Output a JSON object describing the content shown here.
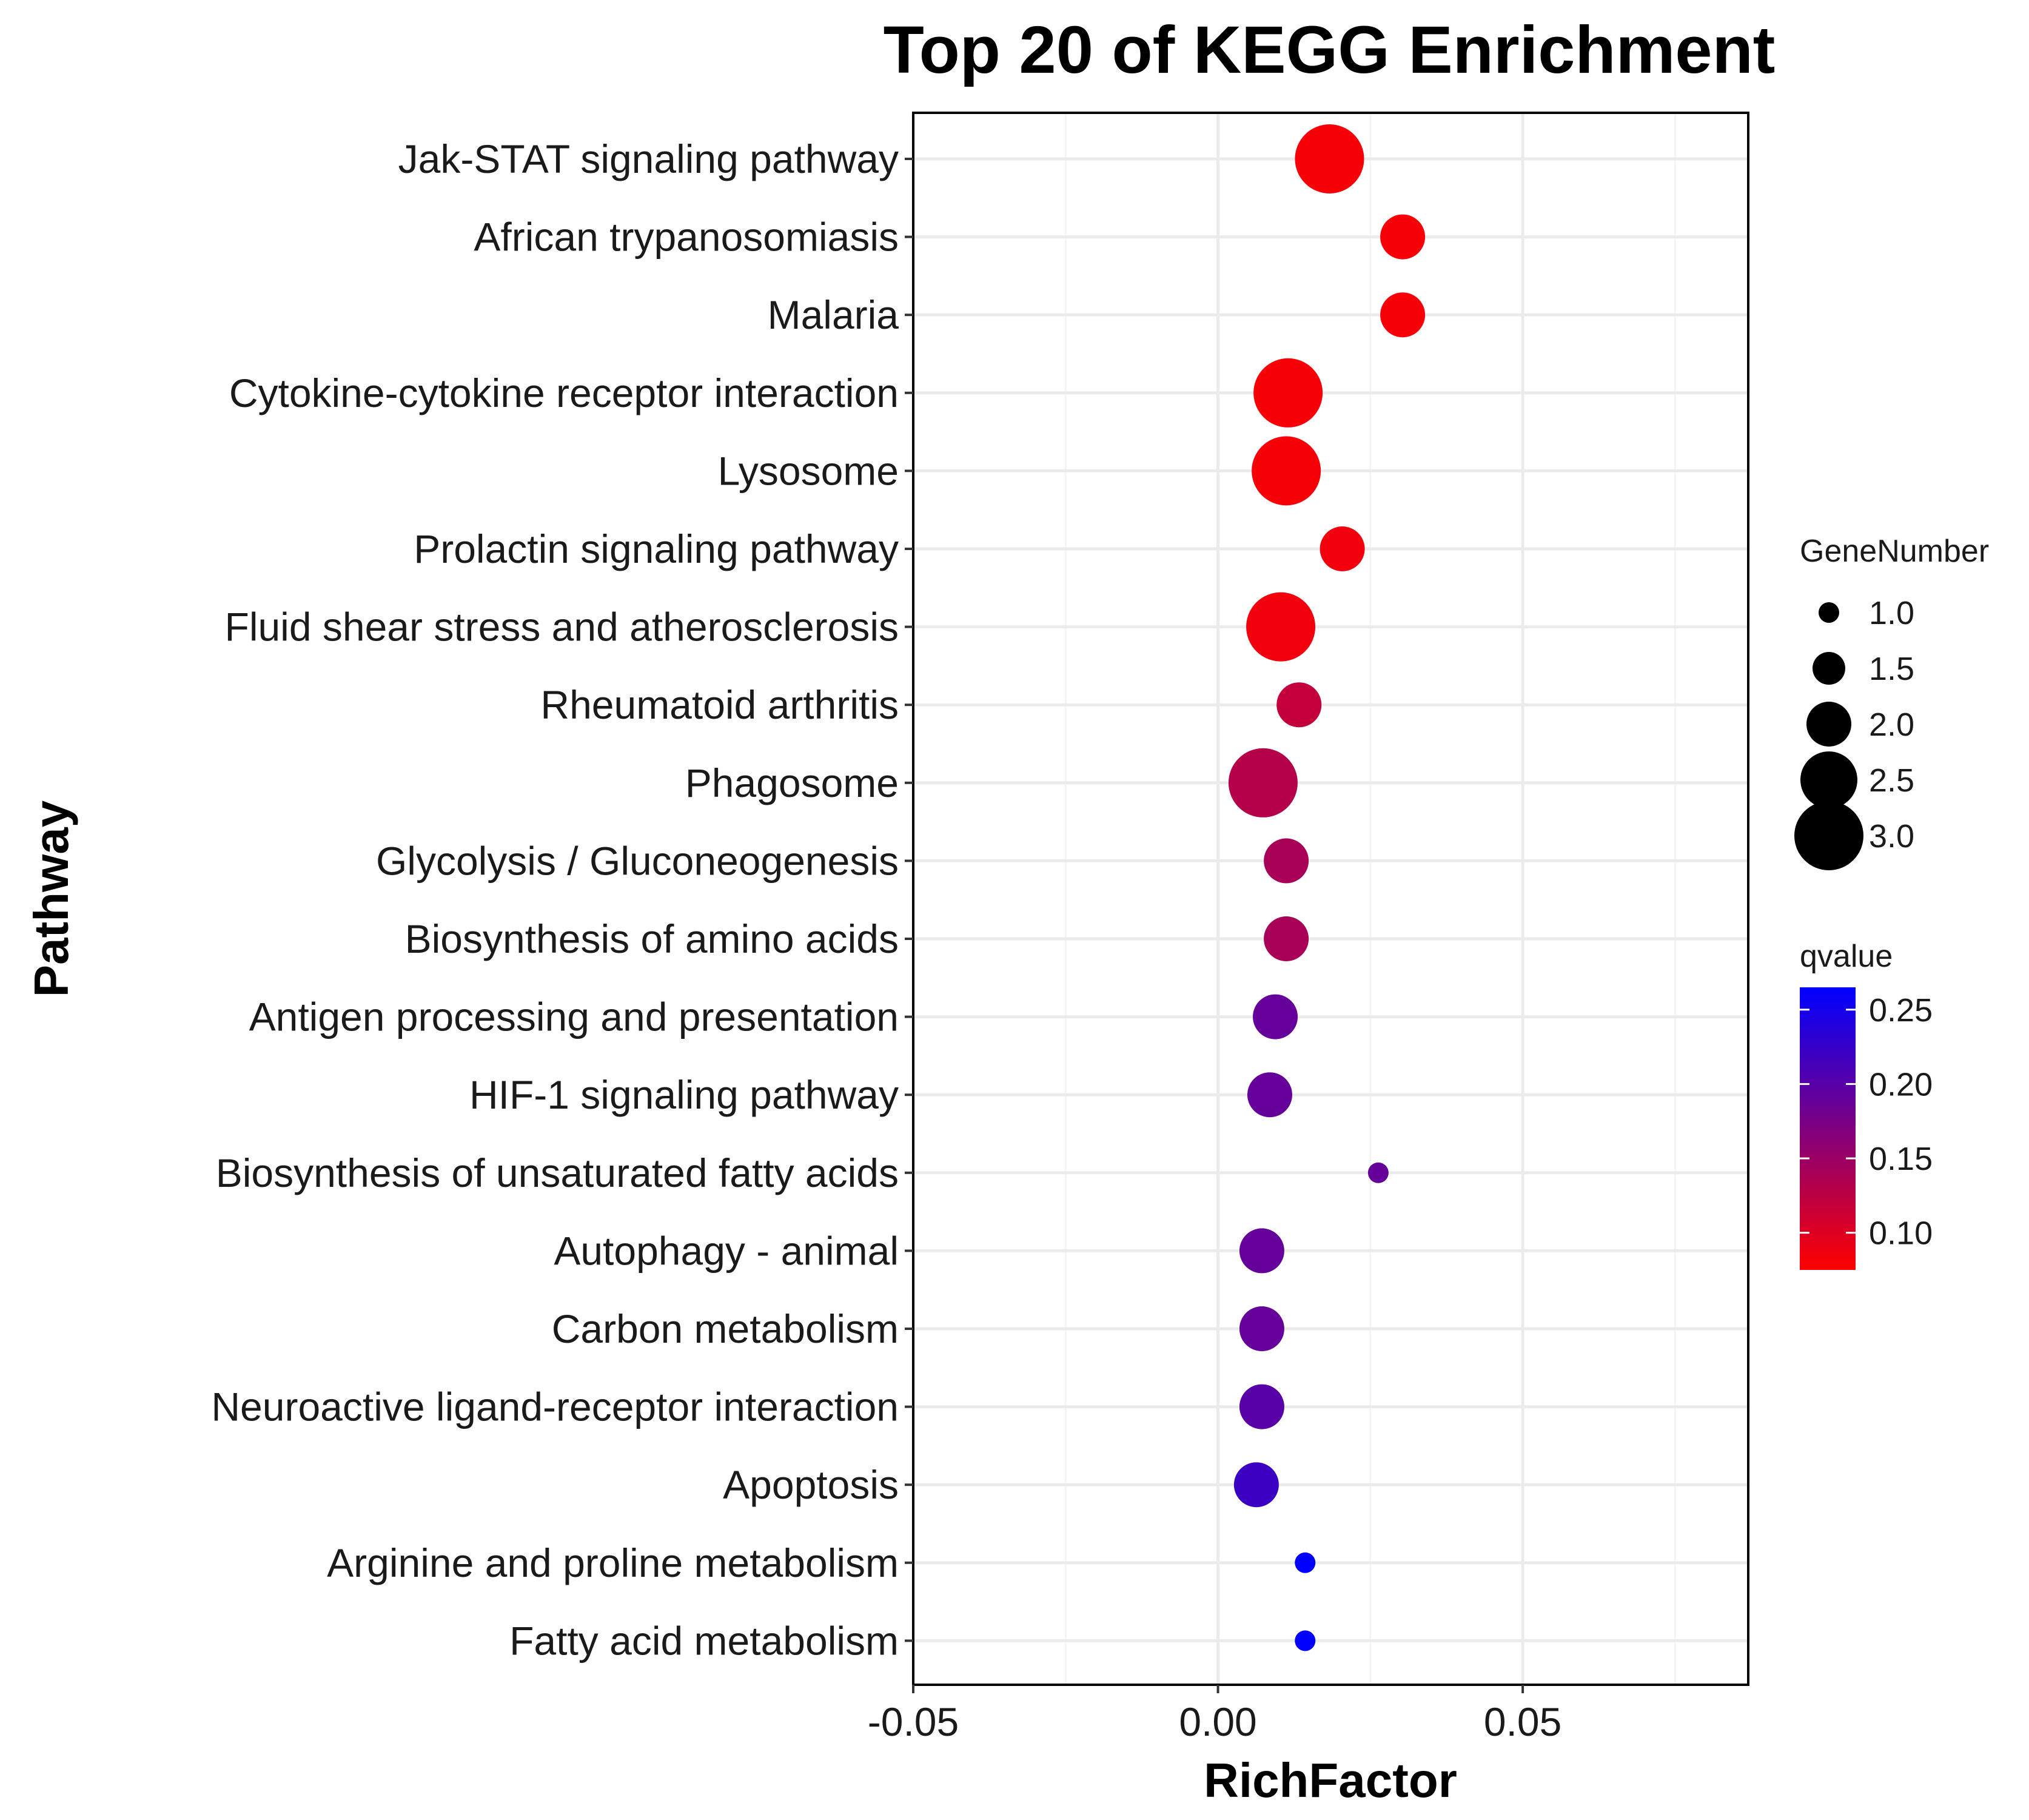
{
  "chart_data": {
    "type": "scatter",
    "title": "Top 20 of KEGG Enrichment",
    "xlabel": "RichFactor",
    "ylabel": "Pathway",
    "xlim": [
      -0.05,
      0.087
    ],
    "x_ticks": [
      -0.05,
      0.0,
      0.05
    ],
    "x_tick_labels": [
      "-0.05",
      "0.00",
      "0.05"
    ],
    "grid": true,
    "points": [
      {
        "pathway": "Jak-STAT signaling pathway",
        "rich_factor": 0.0183,
        "gene_number": 3,
        "qvalue": 0.08
      },
      {
        "pathway": "African trypanosomiasis",
        "rich_factor": 0.0303,
        "gene_number": 2,
        "qvalue": 0.08
      },
      {
        "pathway": "Malaria",
        "rich_factor": 0.0303,
        "gene_number": 2,
        "qvalue": 0.08
      },
      {
        "pathway": "Cytokine-cytokine receptor interaction",
        "rich_factor": 0.0115,
        "gene_number": 3,
        "qvalue": 0.08
      },
      {
        "pathway": "Lysosome",
        "rich_factor": 0.0112,
        "gene_number": 3,
        "qvalue": 0.08
      },
      {
        "pathway": "Prolactin signaling pathway",
        "rich_factor": 0.0204,
        "gene_number": 2,
        "qvalue": 0.085
      },
      {
        "pathway": "Fluid shear stress and atherosclerosis",
        "rich_factor": 0.0103,
        "gene_number": 3,
        "qvalue": 0.085
      },
      {
        "pathway": "Rheumatoid arthritis",
        "rich_factor": 0.0133,
        "gene_number": 2,
        "qvalue": 0.12
      },
      {
        "pathway": "Phagosome",
        "rich_factor": 0.0074,
        "gene_number": 3,
        "qvalue": 0.13
      },
      {
        "pathway": "Glycolysis / Gluconeogenesis",
        "rich_factor": 0.0112,
        "gene_number": 2,
        "qvalue": 0.14
      },
      {
        "pathway": "Biosynthesis of amino acids",
        "rich_factor": 0.0112,
        "gene_number": 2,
        "qvalue": 0.14
      },
      {
        "pathway": "Antigen processing and presentation",
        "rich_factor": 0.0094,
        "gene_number": 2,
        "qvalue": 0.19
      },
      {
        "pathway": "HIF-1 signaling pathway",
        "rich_factor": 0.0085,
        "gene_number": 2,
        "qvalue": 0.19
      },
      {
        "pathway": "Biosynthesis of unsaturated fatty acids",
        "rich_factor": 0.0263,
        "gene_number": 1,
        "qvalue": 0.19
      },
      {
        "pathway": "Autophagy - animal",
        "rich_factor": 0.0072,
        "gene_number": 2,
        "qvalue": 0.19
      },
      {
        "pathway": "Carbon metabolism",
        "rich_factor": 0.0072,
        "gene_number": 2,
        "qvalue": 0.19
      },
      {
        "pathway": "Neuroactive ligand-receptor interaction",
        "rich_factor": 0.0072,
        "gene_number": 2,
        "qvalue": 0.2
      },
      {
        "pathway": "Apoptosis",
        "rich_factor": 0.0063,
        "gene_number": 2,
        "qvalue": 0.22
      },
      {
        "pathway": "Arginine and proline metabolism",
        "rich_factor": 0.0143,
        "gene_number": 1,
        "qvalue": 0.265
      },
      {
        "pathway": "Fatty acid metabolism",
        "rich_factor": 0.0143,
        "gene_number": 1,
        "qvalue": 0.265
      }
    ],
    "size_legend": {
      "title": "GeneNumber",
      "values": [
        1.0,
        1.5,
        2.0,
        2.5,
        3.0
      ],
      "labels": [
        "1.0",
        "1.5",
        "2.0",
        "2.5",
        "3.0"
      ]
    },
    "color_legend": {
      "title": "qvalue",
      "min": 0.075,
      "max": 0.265,
      "low_color": "#ff0000",
      "high_color": "#0000ff",
      "ticks": [
        0.25,
        0.2,
        0.15,
        0.1
      ],
      "tick_labels": [
        "0.25",
        "0.20",
        "0.15",
        "0.10"
      ]
    }
  },
  "colors": {
    "panel_border": "#000000",
    "grid_major": "#ebebeb",
    "grid_minor": "#f5f5f5",
    "size_legend_dot": "#000000"
  }
}
